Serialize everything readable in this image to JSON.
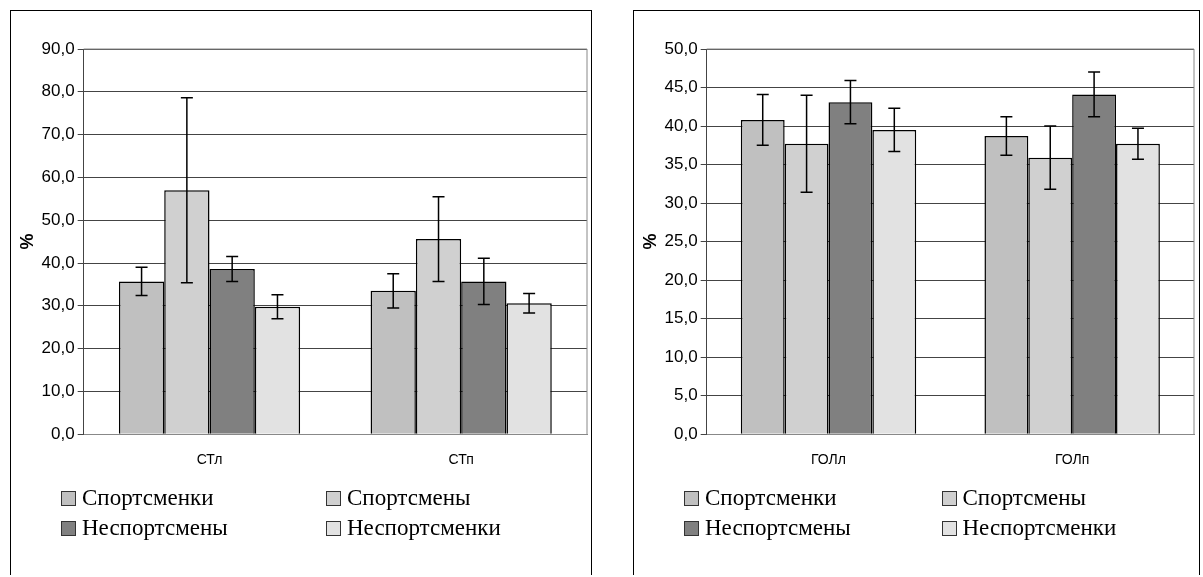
{
  "chart_data": [
    {
      "type": "bar",
      "ylabel": "%",
      "categories": [
        "СТл",
        "СТп"
      ],
      "grid": "y",
      "legend": "bottom",
      "ylim": [
        0,
        90
      ],
      "yticks": [
        {
          "value": 0,
          "label": "0,0"
        },
        {
          "value": 10,
          "label": "10,0"
        },
        {
          "value": 20,
          "label": "20,0"
        },
        {
          "value": 30,
          "label": "30,0"
        },
        {
          "value": 40,
          "label": "40,0"
        },
        {
          "value": 50,
          "label": "50,0"
        },
        {
          "value": 60,
          "label": "60,0"
        },
        {
          "value": 70,
          "label": "70,0"
        },
        {
          "value": 80,
          "label": "80,0"
        },
        {
          "value": 90,
          "label": "90,0"
        }
      ],
      "series": [
        {
          "name": "Спортсменки",
          "color": "#c0c0c0",
          "values": [
            35.7,
            33.5
          ],
          "errors": [
            3.3,
            4.0
          ]
        },
        {
          "name": "Спортсмены",
          "color": "#d0d0d0",
          "values": [
            57.0,
            45.6
          ],
          "errors": [
            21.6,
            9.9
          ]
        },
        {
          "name": "Неспортсмены",
          "color": "#808080",
          "values": [
            38.6,
            35.7
          ],
          "errors": [
            2.9,
            5.4
          ]
        },
        {
          "name": "Неспортсменки",
          "color": "#e2e2e2",
          "values": [
            29.8,
            30.6
          ],
          "errors": [
            2.8,
            2.3
          ]
        }
      ]
    },
    {
      "type": "bar",
      "ylabel": "%",
      "categories": [
        "ГОЛл",
        "ГОЛп"
      ],
      "grid": "y",
      "legend": "bottom",
      "ylim": [
        0,
        50
      ],
      "yticks": [
        {
          "value": 0,
          "label": "0,0"
        },
        {
          "value": 5,
          "label": "5,0"
        },
        {
          "value": 10,
          "label": "10,0"
        },
        {
          "value": 15,
          "label": "15,0"
        },
        {
          "value": 20,
          "label": "20,0"
        },
        {
          "value": 25,
          "label": "25,0"
        },
        {
          "value": 30,
          "label": "30,0"
        },
        {
          "value": 35,
          "label": "35,0"
        },
        {
          "value": 40,
          "label": "40,0"
        },
        {
          "value": 45,
          "label": "45,0"
        },
        {
          "value": 50,
          "label": "50,0"
        }
      ],
      "series": [
        {
          "name": "Спортсменки",
          "color": "#c0c0c0",
          "values": [
            40.8,
            38.7
          ],
          "errors": [
            3.3,
            2.5
          ]
        },
        {
          "name": "Спортсмены",
          "color": "#d0d0d0",
          "values": [
            37.7,
            35.9
          ],
          "errors": [
            6.3,
            4.1
          ]
        },
        {
          "name": "Неспортсмены",
          "color": "#808080",
          "values": [
            43.1,
            44.1
          ],
          "errors": [
            2.8,
            2.9
          ]
        },
        {
          "name": "Неспортсменки",
          "color": "#e2e2e2",
          "values": [
            39.5,
            37.7
          ],
          "errors": [
            2.8,
            2.0
          ]
        }
      ]
    }
  ]
}
